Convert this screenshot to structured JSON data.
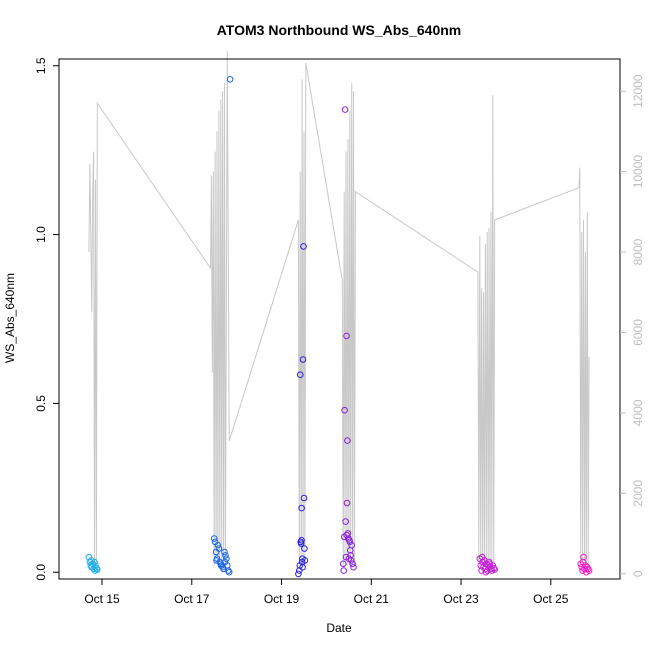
{
  "chart_data": {
    "type": "scatter",
    "title": "ATOM3 Northbound WS_Abs_640nm",
    "xlabel": "Date",
    "ylabel": "WS_Abs_640nm",
    "x_ticks": [
      "Oct 15",
      "Oct 17",
      "Oct 19",
      "Oct 21",
      "Oct 23",
      "Oct 25"
    ],
    "y_ticks": [
      "0.0",
      "0.5",
      "1.0",
      "1.5"
    ],
    "y2_ticks": [
      "0",
      "2000",
      "4000",
      "6000",
      "8000",
      "10000",
      "12000"
    ],
    "xlim": [
      "2019-10-14T01:00",
      "2019-10-26T13:00"
    ],
    "ylim": [
      -0.02,
      1.52
    ],
    "y2lim": [
      -130,
      12800
    ],
    "grid": false,
    "right_axis": {
      "description": "secondary series drawn as grey line",
      "color": "#bdbdbd"
    },
    "series": [
      {
        "color": "#1eaee8",
        "points": [
          [
            "2019-10-14T17:00",
            0.045
          ],
          [
            "2019-10-14T17:30",
            0.03
          ],
          [
            "2019-10-14T18:00",
            0.02
          ],
          [
            "2019-10-14T18:30",
            0.015
          ],
          [
            "2019-10-14T19:00",
            0.025
          ],
          [
            "2019-10-14T19:30",
            0.01
          ],
          [
            "2019-10-14T20:00",
            0.03
          ],
          [
            "2019-10-14T20:30",
            0.02
          ],
          [
            "2019-10-14T21:00",
            0.012
          ],
          [
            "2019-10-14T21:30",
            0.008
          ],
          [
            "2019-10-14T18:15",
            0.035
          ],
          [
            "2019-10-14T20:15",
            0.005
          ]
        ]
      },
      {
        "color": "#1a66e8",
        "points": [
          [
            "2019-10-17T12:00",
            0.1
          ],
          [
            "2019-10-17T12:30",
            0.09
          ],
          [
            "2019-10-17T13:00",
            0.06
          ],
          [
            "2019-10-17T13:30",
            0.04
          ],
          [
            "2019-10-17T14:00",
            0.08
          ],
          [
            "2019-10-17T14:30",
            0.07
          ],
          [
            "2019-10-17T15:00",
            0.03
          ],
          [
            "2019-10-17T15:30",
            0.025
          ],
          [
            "2019-10-17T16:00",
            0.02
          ],
          [
            "2019-10-17T16:30",
            0.015
          ],
          [
            "2019-10-17T17:00",
            0.01
          ],
          [
            "2019-10-17T17:30",
            0.06
          ],
          [
            "2019-10-17T18:00",
            0.05
          ],
          [
            "2019-10-17T18:30",
            0.04
          ],
          [
            "2019-10-17T19:00",
            0.02
          ],
          [
            "2019-10-17T19:30",
            0.005
          ],
          [
            "2019-10-17T20:00",
            0.0
          ],
          [
            "2019-10-17T20:30",
            1.46
          ],
          [
            "2019-10-17T13:15",
            0.035
          ],
          [
            "2019-10-17T15:45",
            0.02
          ],
          [
            "2019-10-17T17:45",
            0.03
          ]
        ]
      },
      {
        "color": "#2a23d8",
        "points": [
          [
            "2019-10-19T09:00",
            -0.005
          ],
          [
            "2019-10-19T09:30",
            0.005
          ],
          [
            "2019-10-19T10:00",
            0.585
          ],
          [
            "2019-10-19T10:15",
            0.09
          ],
          [
            "2019-10-19T10:30",
            0.085
          ],
          [
            "2019-10-19T10:45",
            0.19
          ],
          [
            "2019-10-19T11:00",
            0.03
          ],
          [
            "2019-10-19T11:15",
            0.015
          ],
          [
            "2019-10-19T11:30",
            0.63
          ],
          [
            "2019-10-19T11:45",
            0.965
          ],
          [
            "2019-10-19T12:00",
            0.22
          ],
          [
            "2019-10-19T12:15",
            0.07
          ],
          [
            "2019-10-19T12:30",
            0.035
          ],
          [
            "2019-10-19T10:40",
            0.095
          ],
          [
            "2019-10-19T11:10",
            0.04
          ],
          [
            "2019-10-19T09:45",
            0.02
          ]
        ]
      },
      {
        "color": "#8b1ee0",
        "points": [
          [
            "2019-10-20T09:00",
            0.025
          ],
          [
            "2019-10-20T09:15",
            0.005
          ],
          [
            "2019-10-20T09:30",
            0.105
          ],
          [
            "2019-10-20T09:45",
            0.48
          ],
          [
            "2019-10-20T10:00",
            1.37
          ],
          [
            "2019-10-20T10:15",
            0.15
          ],
          [
            "2019-10-20T10:30",
            0.045
          ],
          [
            "2019-10-20T10:45",
            0.7
          ],
          [
            "2019-10-20T11:00",
            0.205
          ],
          [
            "2019-10-20T11:15",
            0.39
          ],
          [
            "2019-10-20T11:30",
            0.115
          ],
          [
            "2019-10-20T11:45",
            0.1
          ],
          [
            "2019-10-20T12:00",
            0.04
          ],
          [
            "2019-10-20T12:15",
            0.095
          ],
          [
            "2019-10-20T12:30",
            0.09
          ],
          [
            "2019-10-20T13:00",
            0.05
          ],
          [
            "2019-10-20T13:15",
            0.035
          ],
          [
            "2019-10-20T13:30",
            0.08
          ],
          [
            "2019-10-20T14:00",
            0.025
          ],
          [
            "2019-10-20T14:30",
            0.015
          ],
          [
            "2019-10-20T12:45",
            0.065
          ],
          [
            "2019-10-20T10:50",
            0.11
          ]
        ]
      },
      {
        "color": "#c51ed8",
        "points": [
          [
            "2019-10-23T10:00",
            0.04
          ],
          [
            "2019-10-23T10:30",
            0.02
          ],
          [
            "2019-10-23T11:00",
            0.005
          ],
          [
            "2019-10-23T11:30",
            0.03
          ],
          [
            "2019-10-23T12:00",
            0.015
          ],
          [
            "2019-10-23T12:30",
            0.035
          ],
          [
            "2019-10-23T13:00",
            0.01
          ],
          [
            "2019-10-23T13:30",
            0.025
          ],
          [
            "2019-10-23T14:00",
            0.005
          ],
          [
            "2019-10-23T14:30",
            0.02
          ],
          [
            "2019-10-23T15:00",
            0.03
          ],
          [
            "2019-10-23T15:30",
            0.015
          ],
          [
            "2019-10-23T16:00",
            0.01
          ],
          [
            "2019-10-23T16:30",
            0.005
          ],
          [
            "2019-10-23T17:00",
            0.02
          ],
          [
            "2019-10-23T17:30",
            0.012
          ],
          [
            "2019-10-23T18:00",
            0.008
          ],
          [
            "2019-10-23T11:15",
            0.045
          ],
          [
            "2019-10-23T13:15",
            0.0
          ],
          [
            "2019-10-23T15:15",
            0.025
          ]
        ]
      },
      {
        "color": "#f01ec8",
        "points": [
          [
            "2019-10-25T16:00",
            0.025
          ],
          [
            "2019-10-25T16:30",
            0.015
          ],
          [
            "2019-10-25T17:00",
            0.005
          ],
          [
            "2019-10-25T17:30",
            0.045
          ],
          [
            "2019-10-25T18:00",
            0.01
          ],
          [
            "2019-10-25T18:30",
            0.02
          ],
          [
            "2019-10-25T19:00",
            0.0
          ],
          [
            "2019-10-25T19:30",
            0.015
          ],
          [
            "2019-10-25T20:00",
            0.01
          ],
          [
            "2019-10-25T20:30",
            0.005
          ],
          [
            "2019-10-25T17:15",
            0.03
          ]
        ]
      }
    ],
    "right_series": {
      "color": "#c8c8c8",
      "points": [
        [
          "2019-10-14T17:00",
          8000
        ],
        [
          "2019-10-14T17:30",
          10200
        ],
        [
          "2019-10-14T18:00",
          8500
        ],
        [
          "2019-10-14T18:30",
          6500
        ],
        [
          "2019-10-14T19:00",
          9500
        ],
        [
          "2019-10-14T19:30",
          10500
        ],
        [
          "2019-10-14T20:00",
          200
        ],
        [
          "2019-10-14T20:30",
          9800
        ],
        [
          "2019-10-14T21:00",
          300
        ],
        [
          "2019-10-14T21:30",
          11700
        ],
        [
          "2019-10-17T10:00",
          7600
        ],
        [
          "2019-10-17T10:30",
          9900
        ],
        [
          "2019-10-17T11:00",
          5000
        ],
        [
          "2019-10-17T11:30",
          10000
        ],
        [
          "2019-10-17T12:00",
          200
        ],
        [
          "2019-10-17T12:30",
          10500
        ],
        [
          "2019-10-17T13:00",
          300
        ],
        [
          "2019-10-17T13:30",
          11000
        ],
        [
          "2019-10-17T14:00",
          200
        ],
        [
          "2019-10-17T14:30",
          11500
        ],
        [
          "2019-10-17T15:00",
          300
        ],
        [
          "2019-10-17T15:30",
          11800
        ],
        [
          "2019-10-17T16:00",
          200
        ],
        [
          "2019-10-17T16:30",
          12000
        ],
        [
          "2019-10-17T17:00",
          300
        ],
        [
          "2019-10-17T17:30",
          12200
        ],
        [
          "2019-10-17T18:00",
          200
        ],
        [
          "2019-10-17T19:00",
          13000
        ],
        [
          "2019-10-17T20:00",
          3300
        ],
        [
          "2019-10-19T09:00",
          8800
        ],
        [
          "2019-10-19T09:30",
          300
        ],
        [
          "2019-10-19T10:00",
          10000
        ],
        [
          "2019-10-19T10:30",
          200
        ],
        [
          "2019-10-19T11:00",
          12300
        ],
        [
          "2019-10-19T11:30",
          200
        ],
        [
          "2019-10-19T12:00",
          11000
        ],
        [
          "2019-10-19T12:30",
          200
        ],
        [
          "2019-10-19T13:00",
          12700
        ],
        [
          "2019-10-20T08:30",
          7300
        ],
        [
          "2019-10-20T09:00",
          200
        ],
        [
          "2019-10-20T09:30",
          9500
        ],
        [
          "2019-10-20T10:00",
          300
        ],
        [
          "2019-10-20T10:30",
          10500
        ],
        [
          "2019-10-20T11:00",
          200
        ],
        [
          "2019-10-20T11:30",
          10800
        ],
        [
          "2019-10-20T12:00",
          300
        ],
        [
          "2019-10-20T12:30",
          11500
        ],
        [
          "2019-10-20T13:00",
          200
        ],
        [
          "2019-10-20T13:30",
          12200
        ],
        [
          "2019-10-20T14:00",
          300
        ],
        [
          "2019-10-20T14:30",
          12000
        ],
        [
          "2019-10-20T15:00",
          200
        ],
        [
          "2019-10-20T15:30",
          9500
        ],
        [
          "2019-10-23T09:00",
          7500
        ],
        [
          "2019-10-23T09:30",
          300
        ],
        [
          "2019-10-23T10:00",
          8400
        ],
        [
          "2019-10-23T10:30",
          200
        ],
        [
          "2019-10-23T11:00",
          7100
        ],
        [
          "2019-10-23T11:30",
          200
        ],
        [
          "2019-10-23T12:00",
          7000
        ],
        [
          "2019-10-23T12:30",
          300
        ],
        [
          "2019-10-23T13:00",
          8200
        ],
        [
          "2019-10-23T13:30",
          200
        ],
        [
          "2019-10-23T14:00",
          8500
        ],
        [
          "2019-10-23T14:30",
          300
        ],
        [
          "2019-10-23T15:00",
          8600
        ],
        [
          "2019-10-23T15:30",
          200
        ],
        [
          "2019-10-23T16:00",
          9000
        ],
        [
          "2019-10-23T16:30",
          300
        ],
        [
          "2019-10-23T17:00",
          11900
        ],
        [
          "2019-10-23T17:30",
          200
        ],
        [
          "2019-10-23T18:00",
          8800
        ],
        [
          "2019-10-25T15:00",
          9600
        ],
        [
          "2019-10-25T15:30",
          10100
        ],
        [
          "2019-10-25T16:00",
          300
        ],
        [
          "2019-10-25T16:30",
          8500
        ],
        [
          "2019-10-25T17:00",
          200
        ],
        [
          "2019-10-25T17:30",
          8800
        ],
        [
          "2019-10-25T18:00",
          300
        ],
        [
          "2019-10-25T18:30",
          8000
        ],
        [
          "2019-10-25T19:00",
          200
        ],
        [
          "2019-10-25T19:30",
          9000
        ],
        [
          "2019-10-25T20:00",
          200
        ],
        [
          "2019-10-25T20:30",
          5400
        ]
      ]
    }
  }
}
